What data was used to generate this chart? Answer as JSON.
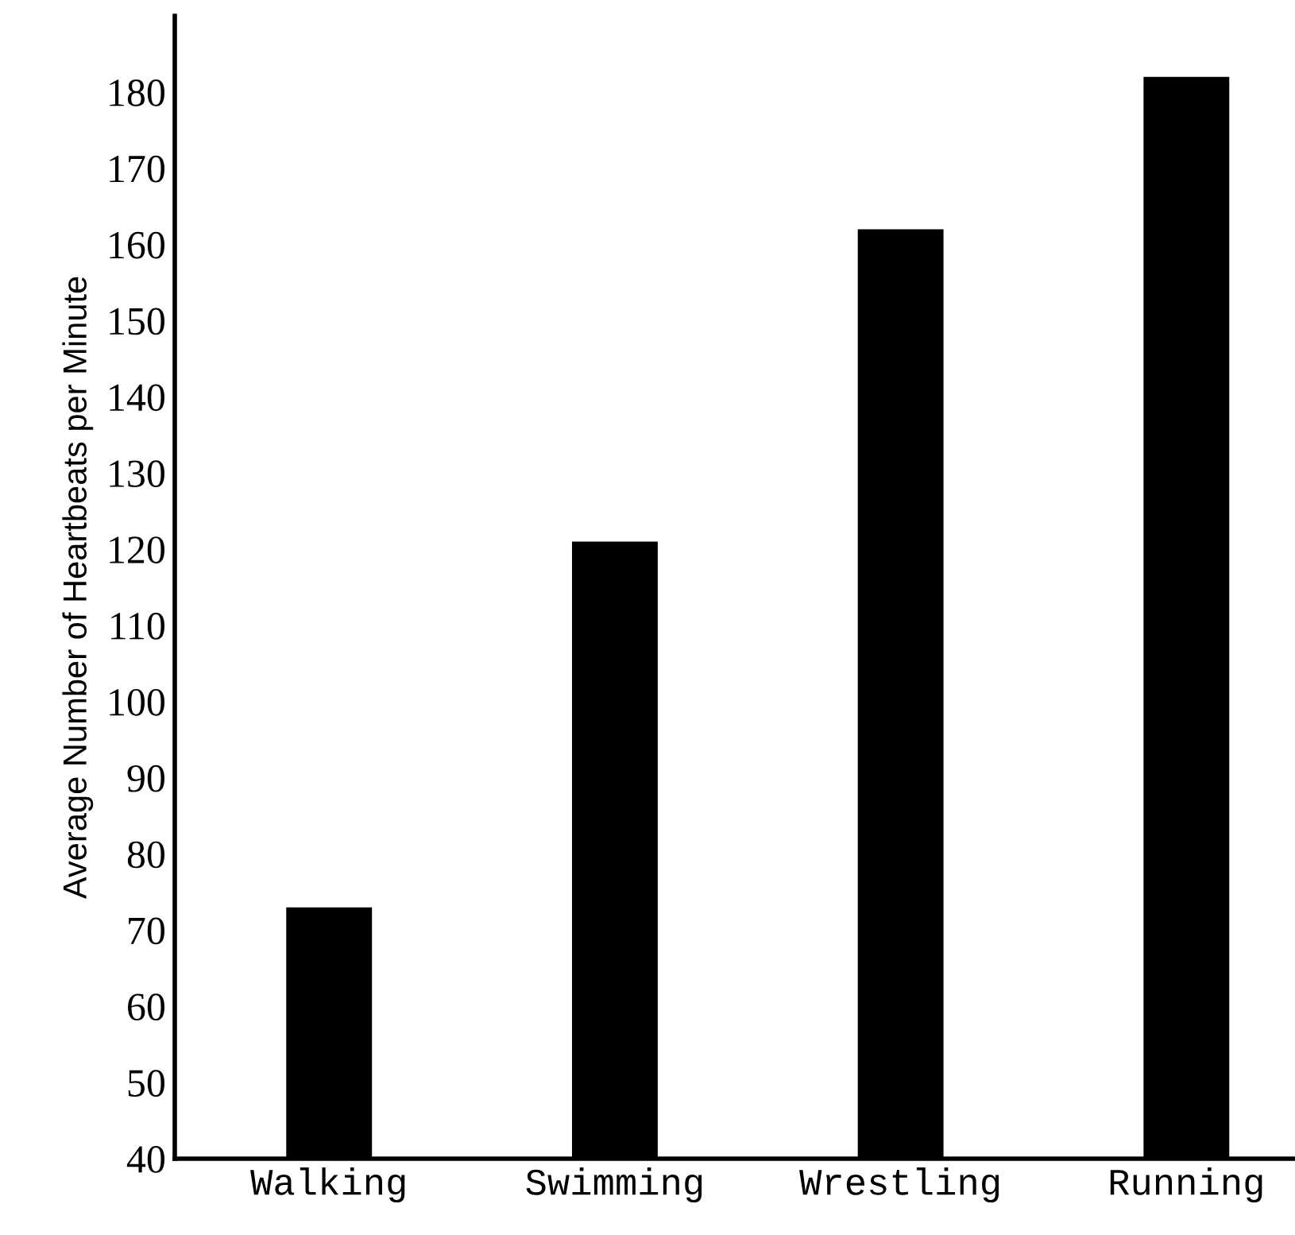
{
  "chart_data": {
    "type": "bar",
    "ylabel": "Average Number of Heartbeats per Minute",
    "categories": [
      "Walking",
      "Swimming",
      "Wrestling",
      "Running"
    ],
    "values": [
      73,
      121,
      162,
      182
    ],
    "color": "#000000",
    "ylim": [
      40,
      190
    ],
    "yticks": [
      40,
      50,
      60,
      70,
      80,
      90,
      100,
      110,
      120,
      130,
      140,
      150,
      160,
      170,
      180
    ],
    "grid": false,
    "legend": false
  }
}
